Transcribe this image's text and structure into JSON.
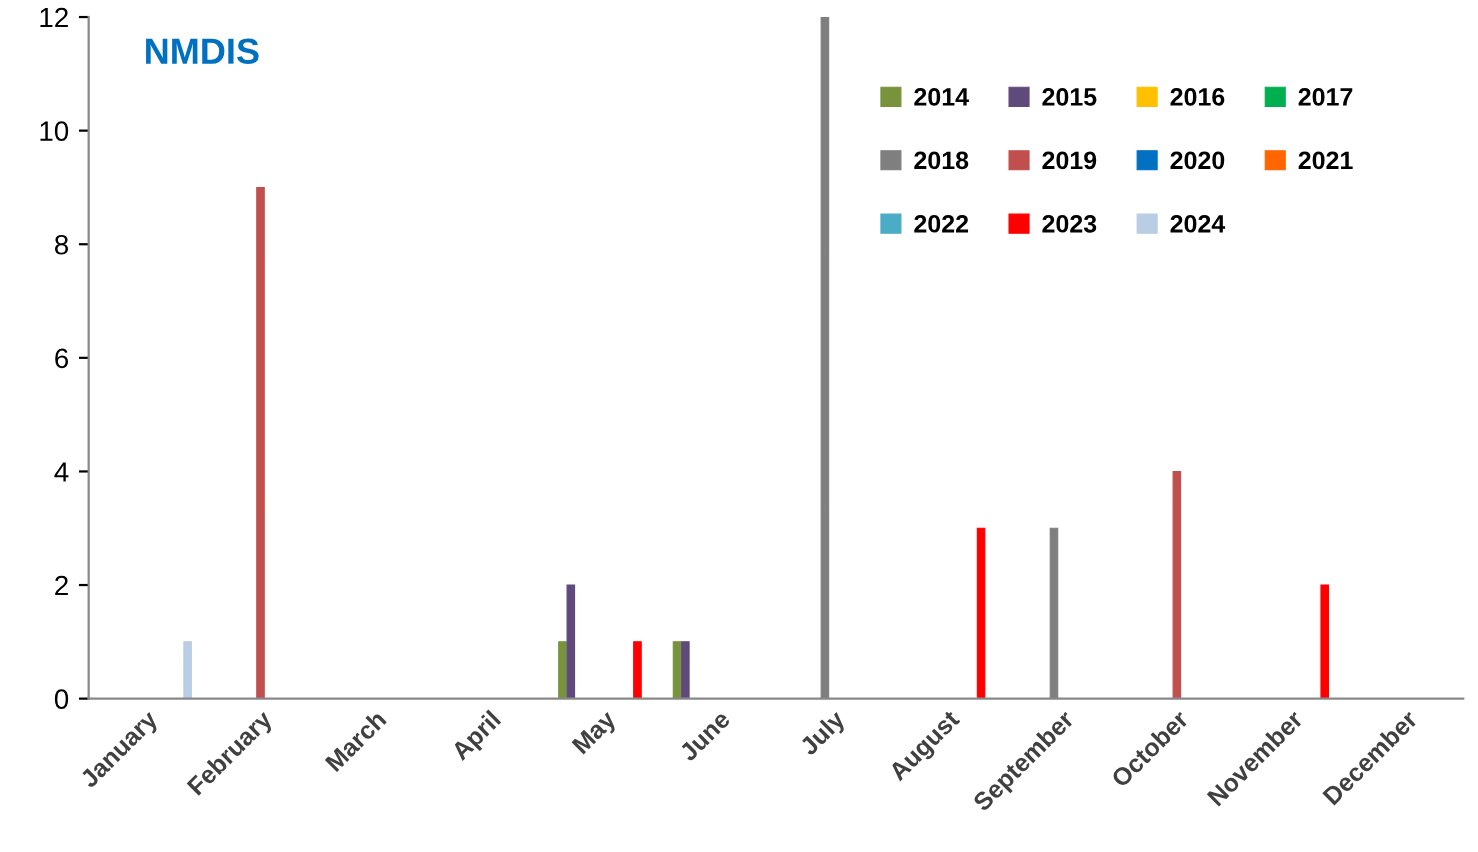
{
  "chart_data": {
    "type": "bar",
    "title": "NMDIS",
    "categories": [
      "January",
      "February",
      "March",
      "April",
      "May",
      "June",
      "July",
      "August",
      "September",
      "October",
      "November",
      "December"
    ],
    "series": [
      {
        "name": "2014",
        "color": "#77933c",
        "values": [
          0,
          0,
          0,
          0,
          1,
          1,
          0,
          0,
          0,
          0,
          0,
          0
        ]
      },
      {
        "name": "2015",
        "color": "#604a7b",
        "values": [
          0,
          0,
          0,
          0,
          2,
          1,
          0,
          0,
          0,
          0,
          0,
          0
        ]
      },
      {
        "name": "2016",
        "color": "#ffc000",
        "values": [
          0,
          0,
          0,
          0,
          0,
          0,
          0,
          0,
          0,
          0,
          0,
          0
        ]
      },
      {
        "name": "2017",
        "color": "#00b050",
        "values": [
          0,
          0,
          0,
          0,
          0,
          0,
          0,
          0,
          0,
          0,
          0,
          0
        ]
      },
      {
        "name": "2018",
        "color": "#7f7f7f",
        "values": [
          0,
          0,
          0,
          0,
          0,
          0,
          12,
          0,
          3,
          0,
          0,
          0
        ]
      },
      {
        "name": "2019",
        "color": "#c0504d",
        "values": [
          0,
          9,
          0,
          0,
          0,
          0,
          0,
          0,
          0,
          4,
          0,
          0
        ]
      },
      {
        "name": "2020",
        "color": "#0070c0",
        "values": [
          0,
          0,
          0,
          0,
          0,
          0,
          0,
          0,
          0,
          0,
          0,
          0
        ]
      },
      {
        "name": "2021",
        "color": "#ff6600",
        "values": [
          0,
          0,
          0,
          0,
          0,
          0,
          0,
          0,
          0,
          0,
          0,
          0
        ]
      },
      {
        "name": "2022",
        "color": "#4bacc6",
        "values": [
          0,
          0,
          0,
          0,
          0,
          0,
          0,
          0,
          0,
          0,
          0,
          0
        ]
      },
      {
        "name": "2023",
        "color": "#ff0000",
        "values": [
          0,
          0,
          0,
          0,
          1,
          0,
          0,
          3,
          0,
          0,
          2,
          0
        ]
      },
      {
        "name": "2024",
        "color": "#b9cde5",
        "values": [
          1,
          0,
          0,
          0,
          0,
          0,
          0,
          0,
          0,
          0,
          0,
          0
        ]
      }
    ],
    "ylim": [
      0,
      12
    ],
    "yticks": [
      0,
      2,
      4,
      6,
      8,
      10,
      12
    ],
    "legend": "top right"
  }
}
